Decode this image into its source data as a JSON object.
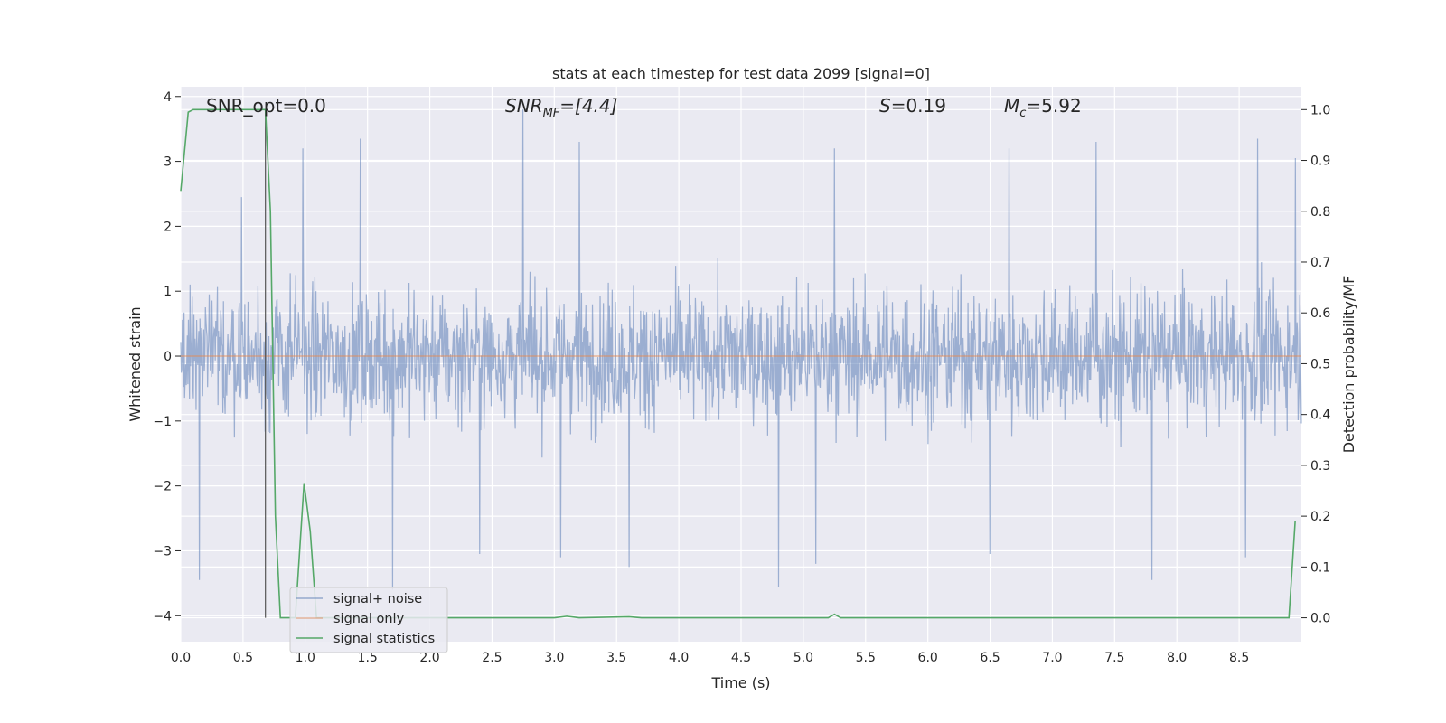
{
  "chart_data": {
    "type": "line",
    "title": "stats at each timestep for test data 2099 [signal=0]",
    "xlabel": "Time (s)",
    "ylabel": "Whitened strain",
    "y2label": "Detection probability/MF",
    "xlim": [
      0.0,
      9.0
    ],
    "ylim": [
      -4.4,
      4.15
    ],
    "y2lim": [
      -0.047,
      1.045
    ],
    "xticks": [
      "0.0",
      "0.5",
      "1.0",
      "1.5",
      "2.0",
      "2.5",
      "3.0",
      "3.5",
      "4.0",
      "4.5",
      "5.0",
      "5.5",
      "6.0",
      "6.5",
      "7.0",
      "7.5",
      "8.0",
      "8.5"
    ],
    "yticks": [
      "−4",
      "−3",
      "−2",
      "−1",
      "0",
      "1",
      "2",
      "3",
      "4"
    ],
    "y2ticks": [
      "0.0",
      "0.1",
      "0.2",
      "0.3",
      "0.4",
      "0.5",
      "0.6",
      "0.7",
      "0.8",
      "0.9",
      "1.0"
    ],
    "grid": true,
    "legend_position": "lower-left",
    "annotations": {
      "snr_opt": "SNR_opt=0.0",
      "snr_mf_name": "SNR",
      "snr_mf_sub": "MF",
      "snr_mf_value": "=[4.4]",
      "s_name": "S",
      "s_value": "=0.19",
      "mc_name": "M",
      "mc_sub": "c",
      "mc_value": "=5.92"
    },
    "marker_line_x": 0.68,
    "series": [
      {
        "name": "signal+ noise",
        "axis": "left",
        "color": "#4c72b0",
        "kind": "noise-trace",
        "x_range": [
          0.0,
          9.0
        ],
        "samples": 2048,
        "typical_abs_max": 2.2,
        "peak_highs": [
          [
            0.49,
            2.45
          ],
          [
            0.98,
            3.2
          ],
          [
            1.44,
            3.35
          ],
          [
            2.75,
            3.8
          ],
          [
            3.2,
            3.3
          ],
          [
            5.25,
            3.2
          ],
          [
            6.65,
            3.2
          ],
          [
            7.35,
            3.3
          ],
          [
            8.65,
            3.35
          ],
          [
            8.95,
            3.05
          ]
        ],
        "peak_lows": [
          [
            0.15,
            -3.45
          ],
          [
            1.7,
            -3.6
          ],
          [
            2.4,
            -3.05
          ],
          [
            3.05,
            -3.1
          ],
          [
            3.6,
            -3.25
          ],
          [
            4.8,
            -3.55
          ],
          [
            5.1,
            -3.2
          ],
          [
            6.5,
            -3.05
          ],
          [
            7.8,
            -3.45
          ],
          [
            8.55,
            -3.1
          ]
        ]
      },
      {
        "name": "signal only",
        "axis": "left",
        "color": "#dd8452",
        "x": [
          0.0,
          9.0
        ],
        "values": [
          0.0,
          0.0
        ]
      },
      {
        "name": "signal statistics",
        "axis": "right",
        "color": "#55a868",
        "x": [
          0.0,
          0.06,
          0.1,
          0.68,
          0.72,
          0.76,
          0.8,
          0.83,
          0.92,
          0.99,
          1.04,
          1.09,
          1.14,
          1.2,
          3.0,
          3.1,
          3.2,
          3.6,
          3.7,
          5.2,
          5.25,
          5.3,
          8.9,
          8.95
        ],
        "values": [
          0.84,
          0.995,
          1.0,
          1.0,
          0.8,
          0.2,
          0.0,
          0.0,
          0.0,
          0.265,
          0.17,
          0.0,
          0.0,
          0.0,
          0.0,
          0.003,
          0.0,
          0.002,
          0.0,
          0.0,
          0.007,
          0.0,
          0.0,
          0.19
        ]
      }
    ]
  }
}
